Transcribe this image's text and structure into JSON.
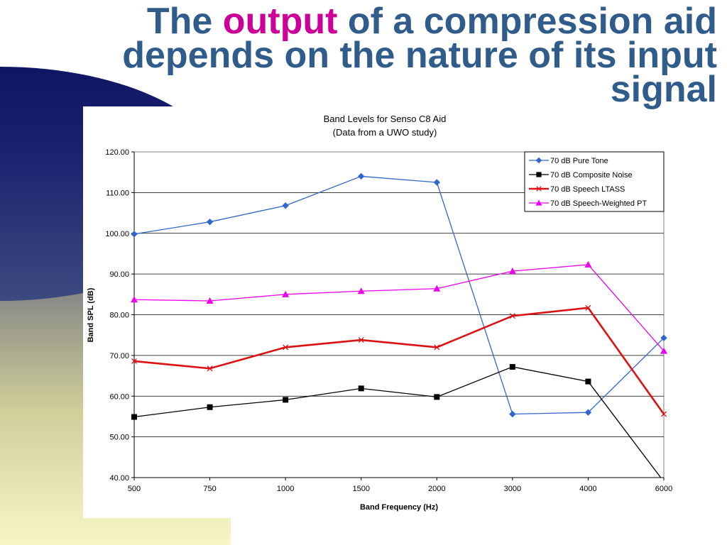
{
  "slide": {
    "title_part1": "The ",
    "title_highlight": "output",
    "title_part2": " of a compression aid depends on the nature of its input signal",
    "title_color": "#2f5c8a",
    "highlight_color": "#cc0099"
  },
  "chart_data": {
    "type": "line",
    "title": "Band Levels for Senso C8 Aid",
    "subtitle": "(Data from a UWO study)",
    "xlabel": "Band Frequency (Hz)",
    "ylabel": "Band SPL (dB)",
    "categories": [
      "500",
      "750",
      "1000",
      "1500",
      "2000",
      "3000",
      "4000",
      "6000"
    ],
    "y_tick_labels": [
      "40.00",
      "50.00",
      "60.00",
      "70.00",
      "80.00",
      "90.00",
      "100.00",
      "110.00",
      "120.00"
    ],
    "ylim": [
      40,
      120
    ],
    "grid": true,
    "legend_position": "top-right",
    "series": [
      {
        "name": "70 dB Pure Tone",
        "color": "#3366cc",
        "marker": "diamond",
        "values": [
          99.8,
          102.8,
          106.8,
          114.0,
          112.5,
          55.6,
          56.0,
          74.3
        ]
      },
      {
        "name": "70 dB Composite Noise",
        "color": "#000000",
        "marker": "square",
        "values": [
          54.9,
          57.3,
          59.1,
          61.9,
          59.8,
          67.2,
          63.6,
          39.0
        ]
      },
      {
        "name": "70 dB Speech LTASS",
        "color": "#dd1111",
        "marker": "x",
        "values": [
          68.6,
          66.8,
          72.0,
          73.8,
          72.0,
          79.7,
          81.7,
          55.6
        ]
      },
      {
        "name": "70 dB Speech-Weighted PT",
        "color": "#ee00ee",
        "marker": "triangle",
        "values": [
          83.7,
          83.4,
          85.0,
          85.8,
          86.4,
          90.7,
          92.3,
          71.1
        ]
      }
    ]
  }
}
